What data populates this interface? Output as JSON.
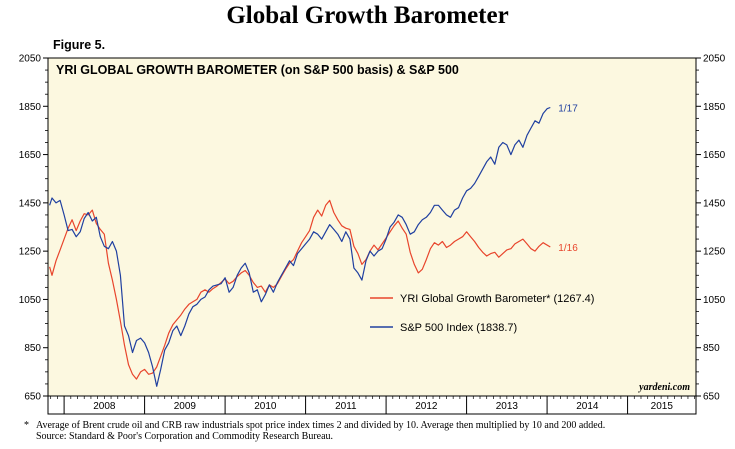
{
  "page": {
    "title": "Global Growth Barometer",
    "figure_label": "Figure 5.",
    "footnote_marker": "*",
    "footnote_line1": "Average of Brent crude oil and CRB raw industrials spot price index times 2 and divided by 10. Average then multiplied by 10 and 200 added.",
    "footnote_line2": "Source: Standard & Poor's Corporation and Commodity Research Bureau."
  },
  "chart_data": {
    "type": "line",
    "title": "YRI GLOBAL GROWTH BAROMETER (on S&P 500 basis) & S&P 500",
    "watermark": "yardeni.com",
    "background_color": "#fcf8e0",
    "x_range": [
      2007.8,
      2015.85
    ],
    "ylim": [
      650,
      2050
    ],
    "y_ticks": [
      650,
      850,
      1050,
      1250,
      1450,
      1650,
      1850,
      2050
    ],
    "y_tick_labels": [
      "650",
      "850",
      "1050",
      "1250",
      "1450",
      "1650",
      "1850",
      "2050"
    ],
    "x_year_boundaries": [
      2008,
      2009,
      2010,
      2011,
      2012,
      2013,
      2014,
      2015
    ],
    "x_year_labels": [
      "2008",
      "2009",
      "2010",
      "2011",
      "2012",
      "2013",
      "2014",
      "2015"
    ],
    "legend_position": "center-right",
    "series": [
      {
        "name": "YRI Global Growth Barometer* (1267.4)",
        "color": "#e8452c",
        "end_label": "1/16",
        "points": [
          [
            2007.82,
            1185
          ],
          [
            2007.85,
            1150
          ],
          [
            2007.9,
            1210
          ],
          [
            2007.95,
            1255
          ],
          [
            2008.0,
            1300
          ],
          [
            2008.05,
            1345
          ],
          [
            2008.1,
            1380
          ],
          [
            2008.15,
            1335
          ],
          [
            2008.2,
            1375
          ],
          [
            2008.25,
            1405
          ],
          [
            2008.3,
            1400
          ],
          [
            2008.35,
            1420
          ],
          [
            2008.4,
            1365
          ],
          [
            2008.45,
            1340
          ],
          [
            2008.5,
            1320
          ],
          [
            2008.55,
            1200
          ],
          [
            2008.6,
            1130
          ],
          [
            2008.65,
            1050
          ],
          [
            2008.7,
            960
          ],
          [
            2008.75,
            860
          ],
          [
            2008.8,
            780
          ],
          [
            2008.85,
            740
          ],
          [
            2008.9,
            720
          ],
          [
            2008.95,
            750
          ],
          [
            2009.0,
            760
          ],
          [
            2009.05,
            740
          ],
          [
            2009.1,
            745
          ],
          [
            2009.15,
            770
          ],
          [
            2009.2,
            815
          ],
          [
            2009.25,
            860
          ],
          [
            2009.3,
            910
          ],
          [
            2009.35,
            945
          ],
          [
            2009.4,
            965
          ],
          [
            2009.45,
            985
          ],
          [
            2009.5,
            1010
          ],
          [
            2009.55,
            1030
          ],
          [
            2009.6,
            1040
          ],
          [
            2009.65,
            1050
          ],
          [
            2009.7,
            1080
          ],
          [
            2009.75,
            1090
          ],
          [
            2009.8,
            1080
          ],
          [
            2009.85,
            1095
          ],
          [
            2009.9,
            1105
          ],
          [
            2009.95,
            1120
          ],
          [
            2010.0,
            1135
          ],
          [
            2010.05,
            1115
          ],
          [
            2010.1,
            1125
          ],
          [
            2010.15,
            1145
          ],
          [
            2010.2,
            1160
          ],
          [
            2010.25,
            1170
          ],
          [
            2010.3,
            1150
          ],
          [
            2010.35,
            1120
          ],
          [
            2010.4,
            1100
          ],
          [
            2010.45,
            1105
          ],
          [
            2010.5,
            1080
          ],
          [
            2010.55,
            1110
          ],
          [
            2010.6,
            1100
          ],
          [
            2010.65,
            1115
          ],
          [
            2010.7,
            1145
          ],
          [
            2010.75,
            1175
          ],
          [
            2010.8,
            1200
          ],
          [
            2010.85,
            1215
          ],
          [
            2010.9,
            1250
          ],
          [
            2010.95,
            1285
          ],
          [
            2011.0,
            1310
          ],
          [
            2011.05,
            1335
          ],
          [
            2011.1,
            1390
          ],
          [
            2011.15,
            1420
          ],
          [
            2011.2,
            1395
          ],
          [
            2011.25,
            1440
          ],
          [
            2011.3,
            1460
          ],
          [
            2011.35,
            1410
          ],
          [
            2011.4,
            1380
          ],
          [
            2011.45,
            1355
          ],
          [
            2011.5,
            1345
          ],
          [
            2011.55,
            1340
          ],
          [
            2011.6,
            1270
          ],
          [
            2011.65,
            1240
          ],
          [
            2011.7,
            1195
          ],
          [
            2011.75,
            1215
          ],
          [
            2011.8,
            1250
          ],
          [
            2011.85,
            1275
          ],
          [
            2011.9,
            1255
          ],
          [
            2011.95,
            1280
          ],
          [
            2012.0,
            1305
          ],
          [
            2012.05,
            1330
          ],
          [
            2012.1,
            1355
          ],
          [
            2012.15,
            1375
          ],
          [
            2012.2,
            1345
          ],
          [
            2012.25,
            1320
          ],
          [
            2012.3,
            1245
          ],
          [
            2012.35,
            1195
          ],
          [
            2012.4,
            1160
          ],
          [
            2012.45,
            1175
          ],
          [
            2012.5,
            1215
          ],
          [
            2012.55,
            1260
          ],
          [
            2012.6,
            1285
          ],
          [
            2012.65,
            1275
          ],
          [
            2012.7,
            1290
          ],
          [
            2012.75,
            1265
          ],
          [
            2012.8,
            1275
          ],
          [
            2012.85,
            1290
          ],
          [
            2012.9,
            1300
          ],
          [
            2012.95,
            1310
          ],
          [
            2013.0,
            1330
          ],
          [
            2013.05,
            1310
          ],
          [
            2013.1,
            1290
          ],
          [
            2013.15,
            1265
          ],
          [
            2013.2,
            1245
          ],
          [
            2013.25,
            1230
          ],
          [
            2013.3,
            1240
          ],
          [
            2013.35,
            1245
          ],
          [
            2013.4,
            1225
          ],
          [
            2013.45,
            1240
          ],
          [
            2013.5,
            1255
          ],
          [
            2013.55,
            1260
          ],
          [
            2013.6,
            1280
          ],
          [
            2013.65,
            1290
          ],
          [
            2013.7,
            1300
          ],
          [
            2013.75,
            1280
          ],
          [
            2013.8,
            1260
          ],
          [
            2013.85,
            1250
          ],
          [
            2013.9,
            1270
          ],
          [
            2013.95,
            1285
          ],
          [
            2014.04,
            1267
          ]
        ]
      },
      {
        "name": "S&P 500 Index (1838.7)",
        "color": "#2040a0",
        "end_label": "1/17",
        "points": [
          [
            2007.82,
            1440
          ],
          [
            2007.85,
            1470
          ],
          [
            2007.9,
            1450
          ],
          [
            2007.95,
            1460
          ],
          [
            2008.0,
            1400
          ],
          [
            2008.05,
            1335
          ],
          [
            2008.1,
            1340
          ],
          [
            2008.15,
            1310
          ],
          [
            2008.2,
            1330
          ],
          [
            2008.25,
            1385
          ],
          [
            2008.3,
            1410
          ],
          [
            2008.35,
            1375
          ],
          [
            2008.4,
            1390
          ],
          [
            2008.45,
            1310
          ],
          [
            2008.5,
            1270
          ],
          [
            2008.55,
            1260
          ],
          [
            2008.6,
            1290
          ],
          [
            2008.65,
            1250
          ],
          [
            2008.7,
            1150
          ],
          [
            2008.75,
            940
          ],
          [
            2008.8,
            900
          ],
          [
            2008.85,
            830
          ],
          [
            2008.9,
            880
          ],
          [
            2008.95,
            890
          ],
          [
            2009.0,
            870
          ],
          [
            2009.05,
            830
          ],
          [
            2009.1,
            770
          ],
          [
            2009.15,
            690
          ],
          [
            2009.2,
            760
          ],
          [
            2009.25,
            840
          ],
          [
            2009.3,
            870
          ],
          [
            2009.35,
            920
          ],
          [
            2009.4,
            940
          ],
          [
            2009.45,
            900
          ],
          [
            2009.5,
            940
          ],
          [
            2009.55,
            990
          ],
          [
            2009.6,
            1020
          ],
          [
            2009.65,
            1030
          ],
          [
            2009.7,
            1050
          ],
          [
            2009.75,
            1060
          ],
          [
            2009.8,
            1090
          ],
          [
            2009.85,
            1105
          ],
          [
            2009.9,
            1110
          ],
          [
            2009.95,
            1115
          ],
          [
            2010.0,
            1140
          ],
          [
            2010.05,
            1080
          ],
          [
            2010.1,
            1100
          ],
          [
            2010.15,
            1150
          ],
          [
            2010.2,
            1180
          ],
          [
            2010.25,
            1200
          ],
          [
            2010.3,
            1160
          ],
          [
            2010.35,
            1080
          ],
          [
            2010.4,
            1090
          ],
          [
            2010.45,
            1040
          ],
          [
            2010.5,
            1070
          ],
          [
            2010.55,
            1110
          ],
          [
            2010.6,
            1080
          ],
          [
            2010.65,
            1120
          ],
          [
            2010.7,
            1150
          ],
          [
            2010.75,
            1180
          ],
          [
            2010.8,
            1210
          ],
          [
            2010.85,
            1190
          ],
          [
            2010.9,
            1240
          ],
          [
            2010.95,
            1260
          ],
          [
            2011.0,
            1280
          ],
          [
            2011.05,
            1300
          ],
          [
            2011.1,
            1330
          ],
          [
            2011.15,
            1320
          ],
          [
            2011.2,
            1300
          ],
          [
            2011.25,
            1330
          ],
          [
            2011.3,
            1360
          ],
          [
            2011.35,
            1340
          ],
          [
            2011.4,
            1320
          ],
          [
            2011.45,
            1290
          ],
          [
            2011.5,
            1330
          ],
          [
            2011.55,
            1300
          ],
          [
            2011.6,
            1180
          ],
          [
            2011.65,
            1160
          ],
          [
            2011.7,
            1130
          ],
          [
            2011.75,
            1210
          ],
          [
            2011.8,
            1250
          ],
          [
            2011.85,
            1230
          ],
          [
            2011.9,
            1250
          ],
          [
            2011.95,
            1260
          ],
          [
            2012.0,
            1300
          ],
          [
            2012.05,
            1350
          ],
          [
            2012.1,
            1370
          ],
          [
            2012.15,
            1400
          ],
          [
            2012.2,
            1390
          ],
          [
            2012.25,
            1360
          ],
          [
            2012.3,
            1320
          ],
          [
            2012.35,
            1330
          ],
          [
            2012.4,
            1360
          ],
          [
            2012.45,
            1380
          ],
          [
            2012.5,
            1390
          ],
          [
            2012.55,
            1410
          ],
          [
            2012.6,
            1440
          ],
          [
            2012.65,
            1440
          ],
          [
            2012.7,
            1420
          ],
          [
            2012.75,
            1400
          ],
          [
            2012.8,
            1390
          ],
          [
            2012.85,
            1420
          ],
          [
            2012.9,
            1430
          ],
          [
            2012.95,
            1470
          ],
          [
            2013.0,
            1500
          ],
          [
            2013.05,
            1510
          ],
          [
            2013.1,
            1530
          ],
          [
            2013.15,
            1560
          ],
          [
            2013.2,
            1590
          ],
          [
            2013.25,
            1620
          ],
          [
            2013.3,
            1640
          ],
          [
            2013.35,
            1610
          ],
          [
            2013.4,
            1680
          ],
          [
            2013.45,
            1700
          ],
          [
            2013.5,
            1690
          ],
          [
            2013.55,
            1650
          ],
          [
            2013.6,
            1690
          ],
          [
            2013.65,
            1710
          ],
          [
            2013.7,
            1680
          ],
          [
            2013.75,
            1730
          ],
          [
            2013.8,
            1760
          ],
          [
            2013.85,
            1790
          ],
          [
            2013.9,
            1780
          ],
          [
            2013.95,
            1820
          ],
          [
            2014.0,
            1840
          ],
          [
            2014.04,
            1845
          ]
        ]
      }
    ]
  }
}
